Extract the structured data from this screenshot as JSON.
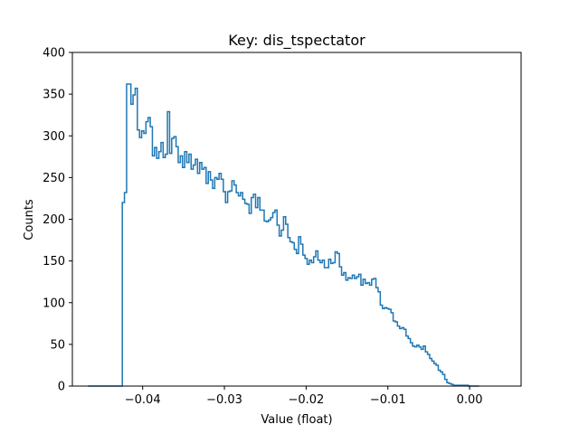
{
  "chart_data": {
    "type": "histogram-step",
    "title": "Key: dis_tspectator",
    "xlabel": "Value (float)",
    "ylabel": "Counts",
    "xlim": [
      -0.0486,
      0.0063
    ],
    "ylim": [
      0,
      400
    ],
    "xticks": [
      -0.04,
      -0.03,
      -0.02,
      -0.01,
      0.0
    ],
    "xtick_labels": [
      "−0.04",
      "−0.03",
      "−0.02",
      "−0.01",
      "0.00"
    ],
    "yticks": [
      0,
      50,
      100,
      150,
      200,
      250,
      300,
      350,
      400
    ],
    "ytick_labels": [
      "0",
      "50",
      "100",
      "150",
      "200",
      "250",
      "300",
      "350",
      "400"
    ],
    "grid": false,
    "legend": "none",
    "line_color": "#1f77b4",
    "bin_width": 0.000263,
    "series": [
      {
        "edges_start": -0.0467,
        "counts": [
          0,
          0,
          0,
          0,
          0,
          0,
          0,
          0,
          0,
          0,
          0,
          0,
          0,
          0,
          0,
          0,
          220,
          232,
          362,
          362,
          338,
          349,
          357,
          307,
          298,
          306,
          303,
          317,
          322,
          311,
          276,
          286,
          273,
          281,
          292,
          274,
          278,
          329,
          279,
          297,
          299,
          287,
          268,
          276,
          262,
          281,
          268,
          278,
          260,
          265,
          272,
          255,
          268,
          260,
          262,
          243,
          257,
          247,
          237,
          250,
          248,
          255,
          248,
          233,
          220,
          233,
          234,
          246,
          241,
          232,
          228,
          232,
          224,
          219,
          218,
          207,
          226,
          230,
          214,
          226,
          211,
          211,
          198,
          197,
          199,
          202,
          208,
          211,
          193,
          180,
          187,
          203,
          194,
          178,
          173,
          172,
          164,
          159,
          179,
          170,
          157,
          153,
          146,
          151,
          148,
          155,
          162,
          151,
          148,
          151,
          142,
          142,
          152,
          147,
          148,
          161,
          159,
          143,
          133,
          136,
          127,
          130,
          129,
          133,
          129,
          131,
          134,
          121,
          128,
          123,
          124,
          121,
          128,
          129,
          118,
          113,
          97,
          93,
          94,
          93,
          92,
          88,
          78,
          77,
          72,
          69,
          70,
          68,
          60,
          57,
          52,
          48,
          47,
          49,
          47,
          44,
          48,
          41,
          38,
          33,
          30,
          27,
          25,
          19,
          17,
          14,
          8,
          4,
          3,
          2,
          1,
          1,
          1,
          1,
          1,
          1,
          1,
          0,
          0,
          0,
          0,
          0
        ]
      }
    ]
  }
}
